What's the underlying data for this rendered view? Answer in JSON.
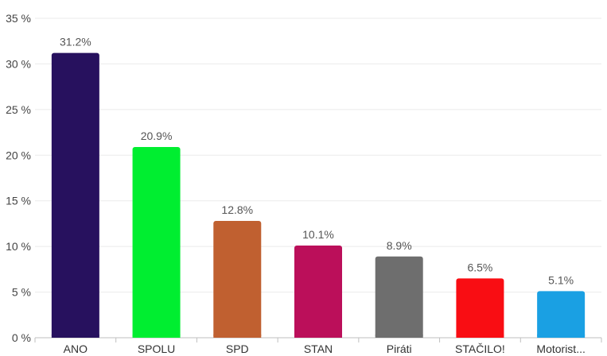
{
  "chart_data": {
    "type": "bar",
    "categories": [
      "ANO",
      "SPOLU",
      "SPD",
      "STAN",
      "Piráti",
      "STAČILO!",
      "Motorist..."
    ],
    "values": [
      31.2,
      20.9,
      12.8,
      10.1,
      8.9,
      6.5,
      5.1
    ],
    "value_labels": [
      "31.2%",
      "20.9%",
      "12.8%",
      "10.1%",
      "8.9%",
      "6.5%",
      "5.1%"
    ],
    "colors": [
      "#27115e",
      "#00ee30",
      "#c06030",
      "#bb0f5a",
      "#6e6e6e",
      "#f90d13",
      "#1aa0e3"
    ],
    "y_ticks": [
      0,
      5,
      10,
      15,
      20,
      25,
      30,
      35
    ],
    "y_tick_labels": [
      "0 %",
      "5 %",
      "10 %",
      "15 %",
      "20 %",
      "25 %",
      "30 %",
      "35 %"
    ],
    "ylim": [
      0,
      35
    ],
    "grid": true,
    "legend": "none",
    "title": "",
    "xlabel": "",
    "ylabel": ""
  }
}
